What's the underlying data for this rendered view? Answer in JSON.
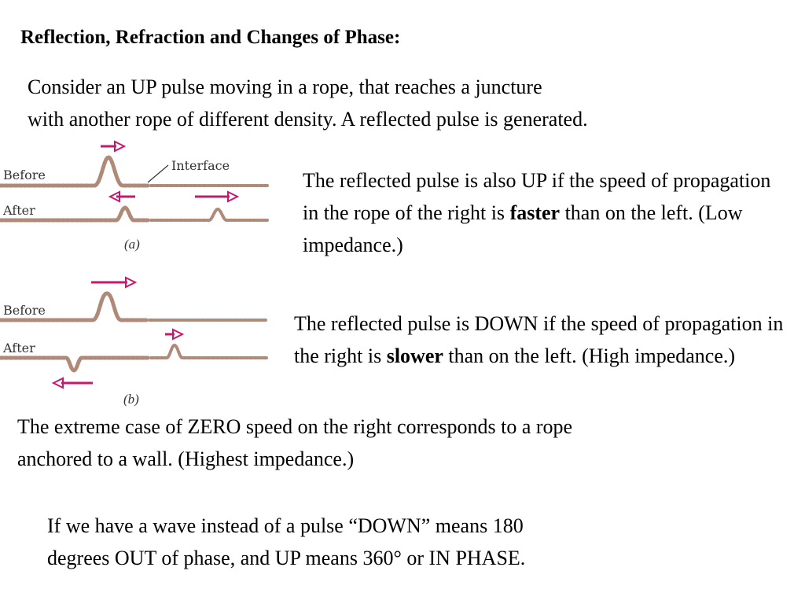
{
  "title": "Reflection, Refraction and Changes of Phase:",
  "intro": {
    "line1": "Consider an UP pulse moving in a rope, that reaches a juncture",
    "line2": "with another rope of different density. A reflected pulse is generated."
  },
  "case_a": {
    "text_before": "The reflected pulse is also UP if the speed of propagation in the rope of the right is ",
    "emphasis": "faster",
    "text_after": " than on the left. (Low impedance.)"
  },
  "case_b": {
    "text_before": "The reflected pulse is DOWN if the speed of propagation in the right is ",
    "emphasis": "slower",
    "text_after": " than on the left. (High impedance.)"
  },
  "extreme": {
    "line1": "The extreme case of ZERO speed on the right corresponds to a rope",
    "line2": "anchored to a wall. (Highest impedance.)"
  },
  "wave": {
    "line1": "If we have a wave instead of a pulse “DOWN” means 180",
    "line2": "degrees OUT of phase, and UP means 360° or IN PHASE."
  },
  "diagram": {
    "before_label": "Before",
    "after_label": "After",
    "interface_label": "Interface",
    "caption_a": "(a)",
    "caption_b": "(b)",
    "rope_color": "#b08a78",
    "arrow_color": "#c8186e"
  }
}
